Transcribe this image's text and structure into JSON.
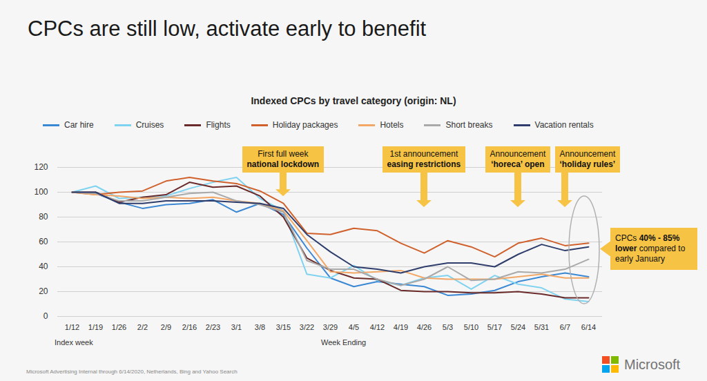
{
  "chart_data": {
    "type": "line",
    "title": "CPCs are still low, activate early to benefit",
    "subtitle": "Indexed CPCs by travel category (origin: NL)",
    "x_label": "Week Ending",
    "x_note": "Index week",
    "categories": [
      "1/12",
      "1/19",
      "1/26",
      "2/2",
      "2/9",
      "2/16",
      "2/23",
      "3/1",
      "3/8",
      "3/15",
      "3/22",
      "3/29",
      "4/5",
      "4/12",
      "4/19",
      "4/26",
      "5/3",
      "5/10",
      "5/17",
      "5/24",
      "5/31",
      "6/7",
      "6/14"
    ],
    "series": [
      {
        "name": "Car hire",
        "color": "#3a87d4",
        "values": [
          100,
          99,
          92,
          87,
          90,
          91,
          94,
          84,
          91,
          82,
          55,
          31,
          24,
          28,
          26,
          24,
          17,
          18,
          21,
          28,
          32,
          35,
          32
        ]
      },
      {
        "name": "Cruises",
        "color": "#7fd3f0",
        "values": [
          100,
          105,
          95,
          96,
          97,
          103,
          108,
          112,
          95,
          85,
          34,
          31,
          41,
          29,
          25,
          31,
          33,
          22,
          33,
          26,
          23,
          14,
          12
        ]
      },
      {
        "name": "Flights",
        "color": "#6b2a2a",
        "values": [
          100,
          100,
          92,
          96,
          98,
          108,
          104,
          105,
          97,
          80,
          47,
          37,
          31,
          30,
          21,
          20,
          20,
          19,
          19,
          20,
          18,
          15,
          15
        ]
      },
      {
        "name": "Holiday packages",
        "color": "#d0612c",
        "values": [
          100,
          98,
          100,
          101,
          109,
          112,
          109,
          107,
          101,
          91,
          67,
          66,
          71,
          69,
          59,
          51,
          61,
          56,
          48,
          59,
          63,
          57,
          59
        ]
      },
      {
        "name": "Hotels",
        "color": "#f2a766",
        "values": [
          100,
          98,
          97,
          95,
          96,
          95,
          96,
          93,
          91,
          85,
          61,
          36,
          35,
          36,
          37,
          31,
          30,
          30,
          30,
          32,
          34,
          31,
          31
        ]
      },
      {
        "name": "Short breaks",
        "color": "#a9a9a9",
        "values": [
          100,
          99,
          93,
          93,
          96,
          99,
          100,
          93,
          90,
          84,
          45,
          38,
          38,
          30,
          25,
          30,
          40,
          29,
          30,
          36,
          35,
          38,
          46
        ]
      },
      {
        "name": "Vacation rentals",
        "color": "#2e3d6b",
        "values": [
          100,
          100,
          91,
          91,
          93,
          93,
          93,
          92,
          91,
          87,
          66,
          52,
          40,
          38,
          35,
          40,
          43,
          43,
          40,
          50,
          58,
          53,
          56
        ]
      }
    ],
    "ylim": [
      0,
      120
    ],
    "yticks": [
      0,
      20,
      40,
      60,
      80,
      100,
      120
    ],
    "grid": true,
    "legend": "top",
    "annotations": [
      {
        "x": "3/15",
        "text": "First full week national lockdown",
        "bold": "national lockdown"
      },
      {
        "x": "4/26",
        "text": "1st announcement easing restrictions",
        "bold": "easing restrictions"
      },
      {
        "x": "5/24",
        "text": "Announcement ‘horeca’ open",
        "bold": "‘horeca’ open"
      },
      {
        "x": "6/7",
        "text": "Announcement ‘holiday rules’",
        "bold": "‘holiday rules’"
      }
    ],
    "callout": {
      "text": "CPCs 40% - 85% lower compared to early January",
      "bold": "40% - 85% lower"
    },
    "source": "Microsoft Advertising Internal through 6/14/2020, Netherlands, Bing and Yahoo Search",
    "logo": "Microsoft"
  }
}
